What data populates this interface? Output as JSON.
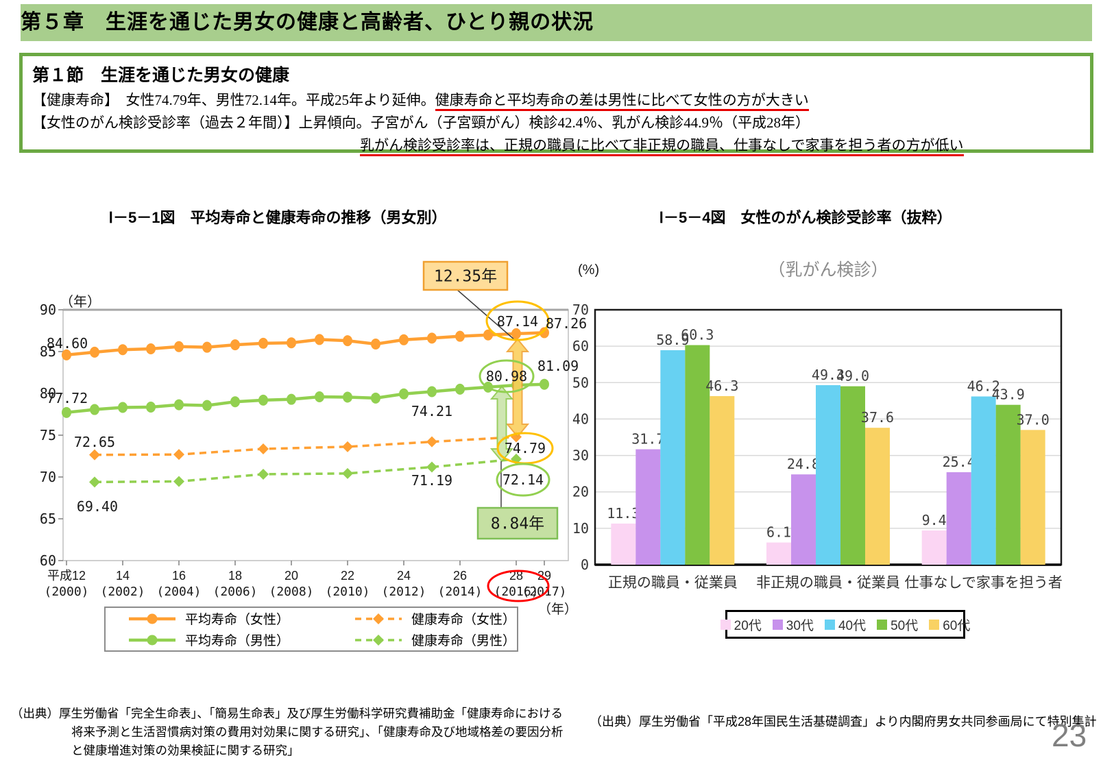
{
  "page": {
    "number": "23"
  },
  "header": {
    "title": "第５章　生涯を通じた男女の健康と高齢者、ひとり親の状況",
    "bg_color": "#A8CE8D"
  },
  "section": {
    "border_color": "#6BA843",
    "heading": "第１節　生涯を通じた男女の健康",
    "lines": [
      [
        {
          "t": "【健康寿命】　女性74.79年、男性72.14年。平成25年より延伸。",
          "u": false
        },
        {
          "t": "健康寿命と平均寿命の差は男性に比べて女性の方が大きい",
          "u": true
        }
      ],
      [
        {
          "t": "【女性のがん検診受診率（過去２年間）】上昇傾向。子宮がん（子宮頸がん）検診42.4％、乳がん検診44.9％（平成28年）",
          "u": false
        }
      ],
      [
        {
          "t": "乳がん検診受診率は、正規の職員に比べて非正規の職員、仕事なしで家事を担う者の方が低い",
          "u": true
        }
      ]
    ]
  },
  "figures": [
    {
      "title": "Ⅰ－5－1図　平均寿命と健康寿命の推移（男女別）"
    },
    {
      "title": "Ⅰ－5－4図　女性のがん検診受診率（抜粋）"
    }
  ],
  "chart_data": [
    {
      "type": "line",
      "title": "Ⅰ－5－1図　平均寿命と健康寿命の推移（男女別）",
      "y_axis": {
        "unit": "（年）",
        "min": 60,
        "max": 90,
        "step": 5
      },
      "x_axis": {
        "unit": "（年）",
        "tick_years": [
          2000,
          2002,
          2004,
          2006,
          2008,
          2010,
          2012,
          2014,
          2016,
          2017
        ],
        "tick_labels_top": [
          "平成12",
          "14",
          "16",
          "18",
          "20",
          "22",
          "24",
          "26",
          "28",
          "29"
        ],
        "tick_labels_bottom": [
          "(2000)",
          "(2002)",
          "(2004)",
          "(2006)",
          "(2008)",
          "(2010)",
          "(2012)",
          "(2014)",
          "(2016)",
          "(2017)"
        ],
        "red_circled_label": "28（2016）"
      },
      "series": [
        {
          "name": "平均寿命（女性）",
          "color": "#FFA033",
          "line": "solid",
          "marker": "circle",
          "years": [
            2000,
            2001,
            2002,
            2003,
            2004,
            2005,
            2006,
            2007,
            2008,
            2009,
            2010,
            2011,
            2012,
            2013,
            2014,
            2015,
            2016,
            2017
          ],
          "values": [
            84.6,
            84.93,
            85.23,
            85.33,
            85.59,
            85.52,
            85.81,
            85.99,
            86.05,
            86.44,
            86.3,
            85.9,
            86.41,
            86.61,
            86.83,
            86.99,
            87.14,
            87.26
          ]
        },
        {
          "name": "健康寿命（女性）",
          "color": "#FFA033",
          "line": "dashed",
          "marker": "diamond",
          "years": [
            2001,
            2004,
            2007,
            2010,
            2013,
            2016
          ],
          "values": [
            72.65,
            72.69,
            73.36,
            73.62,
            74.21,
            74.79
          ]
        },
        {
          "name": "平均寿命（男性）",
          "color": "#92D050",
          "line": "solid",
          "marker": "circle",
          "years": [
            2000,
            2001,
            2002,
            2003,
            2004,
            2005,
            2006,
            2007,
            2008,
            2009,
            2010,
            2011,
            2012,
            2013,
            2014,
            2015,
            2016,
            2017
          ],
          "values": [
            77.72,
            78.07,
            78.32,
            78.36,
            78.64,
            78.56,
            79.0,
            79.19,
            79.29,
            79.59,
            79.55,
            79.44,
            79.94,
            80.21,
            80.5,
            80.75,
            80.98,
            81.09
          ]
        },
        {
          "name": "健康寿命（男性）",
          "color": "#92D050",
          "line": "dashed",
          "marker": "diamond",
          "years": [
            2001,
            2004,
            2007,
            2010,
            2013,
            2016
          ],
          "values": [
            69.4,
            69.47,
            70.33,
            70.42,
            71.19,
            72.14
          ]
        }
      ],
      "point_labels": [
        "84.60",
        "87.14",
        "87.26",
        "77.72",
        "80.98",
        "81.09",
        "72.65",
        "74.21",
        "74.79",
        "69.40",
        "71.19",
        "72.14"
      ],
      "circled_labels": [
        {
          "text": "87.14",
          "color": "#FFC000"
        },
        {
          "text": "80.98",
          "color": "#92D050"
        },
        {
          "text": "74.79",
          "color": "#FFC000"
        },
        {
          "text": "72.14",
          "color": "#92D050"
        }
      ],
      "callouts": [
        {
          "text": "12.35年",
          "fill": "#FFDD99",
          "stroke": "#F0A030",
          "meaning": "female gap between life expectancy and healthy life expectancy"
        },
        {
          "text": "8.84年",
          "fill": "#C5E0A2",
          "stroke": "#7FBF55",
          "meaning": "male gap between life expectancy and healthy life expectancy"
        }
      ],
      "gap_arrows": [
        {
          "between": "87.14-74.79",
          "fill": "#FBCF5B",
          "stroke": "#F0A030"
        },
        {
          "between": "80.98-72.14",
          "fill": "#C9E3A8",
          "stroke": "#8CC84B"
        }
      ],
      "legend": [
        "平均寿命（女性）",
        "健康寿命（女性）",
        "平均寿命（男性）",
        "健康寿命（男性）"
      ]
    },
    {
      "type": "bar",
      "title": "Ⅰ－5－4図　女性のがん検診受診率（抜粋）",
      "subtitle": "（乳がん検診）",
      "subtitle_color": "#8C8C8C",
      "y_axis": {
        "unit": "(%)",
        "min": 0,
        "max": 70,
        "step": 10
      },
      "categories": [
        "正規の職員・従業員",
        "非正規の職員・従業員",
        "仕事なしで家事を担う者"
      ],
      "series": [
        {
          "name": "20代",
          "color": "#FBD5F3",
          "values": [
            11.3,
            6.1,
            9.4
          ]
        },
        {
          "name": "30代",
          "color": "#C792EC",
          "values": [
            31.7,
            24.8,
            25.4
          ]
        },
        {
          "name": "40代",
          "color": "#67D1F2",
          "values": [
            58.9,
            49.3,
            46.2
          ]
        },
        {
          "name": "50代",
          "color": "#7FC342",
          "values": [
            60.3,
            49.0,
            43.9
          ]
        },
        {
          "name": "60代",
          "color": "#F9D263",
          "values": [
            46.3,
            37.6,
            37.0
          ]
        }
      ]
    }
  ],
  "sources": {
    "left_lines": [
      "（出典）厚生労働省「完全生命表」、「簡易生命表」及び厚生労働科学研究費補助金「健康寿命における",
      "将来予測と生活習慣病対策の費用対効果に関する研究」、「健康寿命及び地域格差の要因分析",
      "と健康増進対策の効果検証に関する研究」"
    ],
    "right": "（出典）厚生労働省「平成28年国民生活基礎調査」より内閣府男女共同参画局にて特別集計"
  }
}
